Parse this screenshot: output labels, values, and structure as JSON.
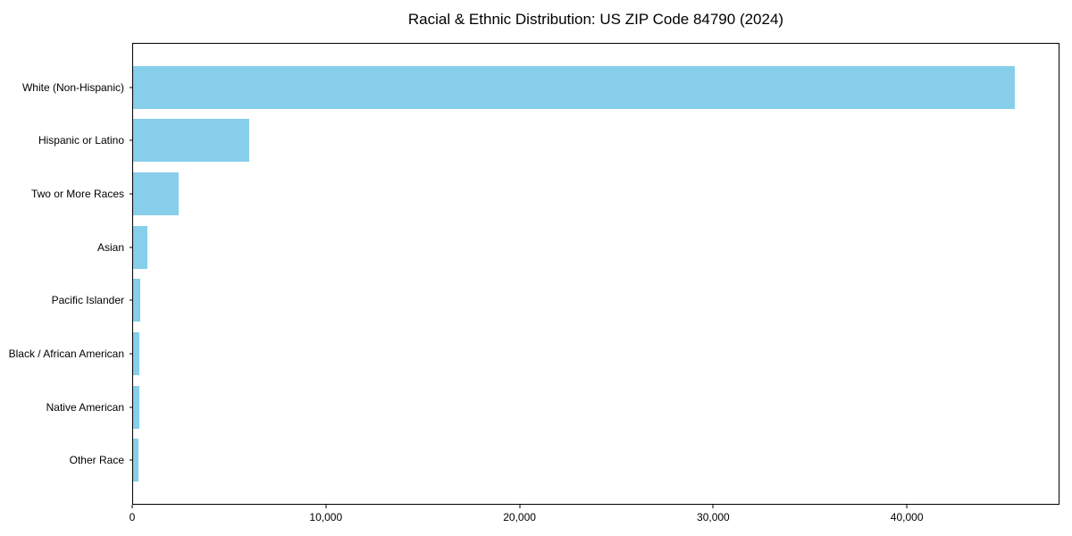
{
  "chart_data": {
    "type": "bar",
    "orientation": "horizontal",
    "title": "Racial & Ethnic Distribution: US ZIP Code 84790 (2024)",
    "categories": [
      "White (Non-Hispanic)",
      "Hispanic or Latino",
      "Two or More Races",
      "Asian",
      "Pacific Islander",
      "Black / African American",
      "Native American",
      "Other Race"
    ],
    "values": [
      45600,
      6000,
      2340,
      760,
      350,
      340,
      330,
      280
    ],
    "xlabel": "",
    "ylabel": "",
    "xlim": [
      0,
      47880
    ],
    "xticks": [
      0,
      10000,
      20000,
      30000,
      40000
    ],
    "bar_color": "#87CEEB",
    "grid": false,
    "legend": null,
    "background_color": "#ffffff",
    "spine_color": "#000000"
  }
}
